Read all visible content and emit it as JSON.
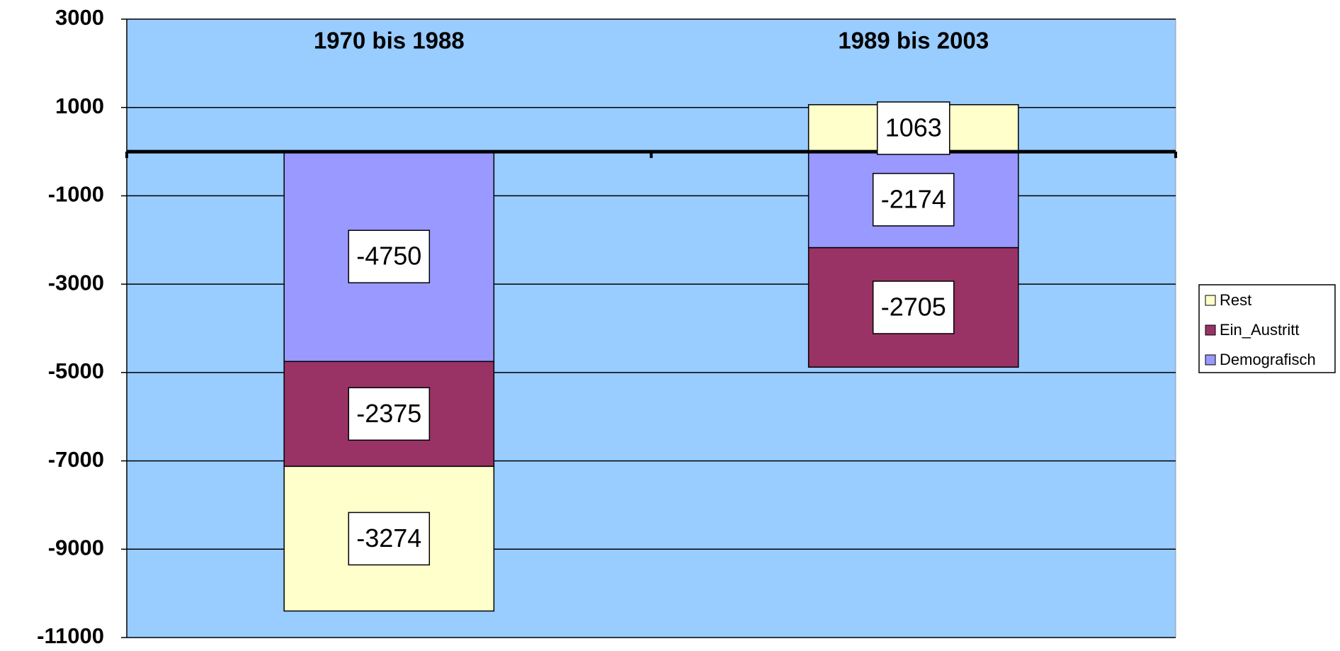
{
  "chart_data": {
    "type": "stacked_bar",
    "categories": [
      "1970 bis 1988",
      "1989 bis 2003"
    ],
    "series": [
      {
        "name": "Demografisch",
        "color": "#9999ff",
        "values": [
          -4750,
          -2174
        ]
      },
      {
        "name": "Ein_Austritt",
        "color": "#993366",
        "values": [
          -2375,
          -2705
        ]
      },
      {
        "name": "Rest",
        "color": "#ffffcc",
        "values": [
          -3274,
          1063
        ]
      }
    ],
    "ylim": [
      -11000,
      3000
    ],
    "yticks": [
      -11000,
      -9000,
      -7000,
      -5000,
      -3000,
      -1000,
      1000,
      3000
    ],
    "grid": true,
    "plot_background": "#99ccff",
    "legend": "right"
  }
}
